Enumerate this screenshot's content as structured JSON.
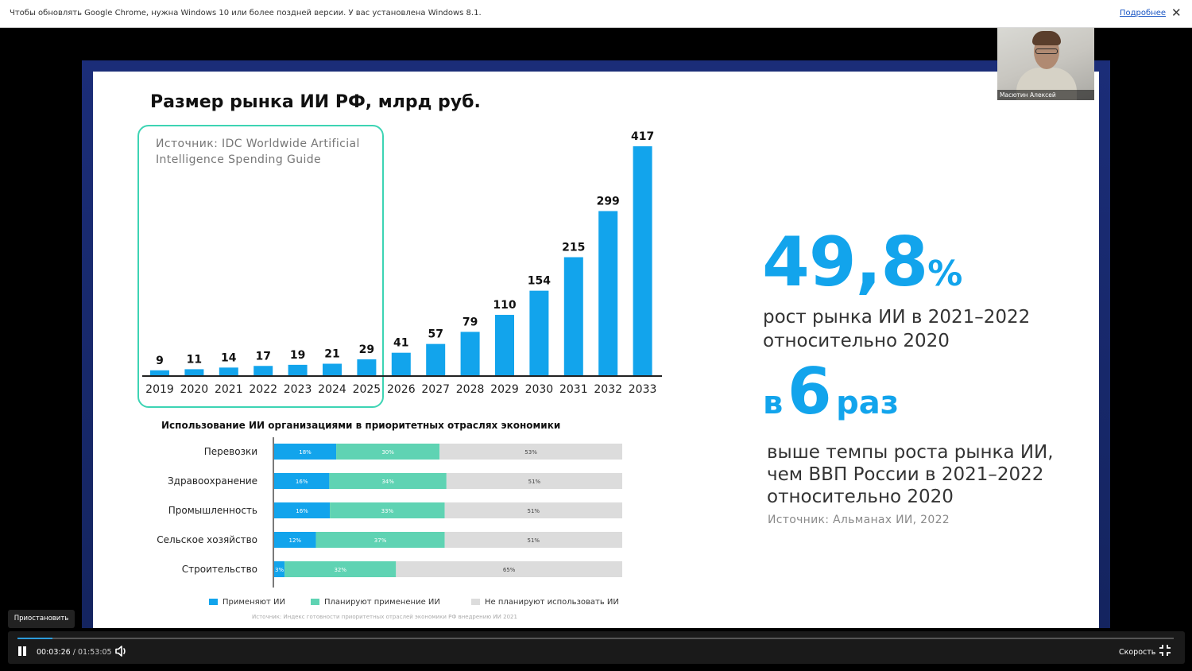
{
  "infobar": {
    "message": "Чтобы обновлять Google Chrome, нужна Windows 10 или более поздней версии. У вас установлена Windows 8.1.",
    "link": "Подробнее",
    "close_icon": "close-icon"
  },
  "slide": {
    "title": "Размер рынка ИИ РФ, млрд руб.",
    "source_box": "Источник: IDC Worldwide Artificial Intelligence Spending Guide",
    "stat1": {
      "value": "49,8",
      "suffix": "%",
      "description_line1": "рост рынка ИИ в 2021–2022",
      "description_line2": "относительно 2020"
    },
    "stat2": {
      "prefix": "в",
      "value": "6",
      "suffix": "раз",
      "description_line1": "выше темпы роста рынка ИИ,",
      "description_line2": "чем ВВП России в 2021–2022",
      "description_line3": "относительно 2020",
      "source": "Источник: Альманах ИИ, 2022"
    },
    "usage_title": "Использование ИИ организациями в приоритетных отраслях экономики",
    "usage_source": "Источник: Индекс готовности приоритетных отраслей экономики РФ внедрению ИИ 2021"
  },
  "chart_data": [
    {
      "type": "bar",
      "title": "Размер рынка ИИ РФ, млрд руб.",
      "categories": [
        "2019",
        "2020",
        "2021",
        "2022",
        "2023",
        "2024",
        "2025",
        "2026",
        "2027",
        "2028",
        "2029",
        "2030",
        "2031",
        "2032",
        "2033"
      ],
      "values": [
        9,
        11,
        14,
        17,
        19,
        21,
        29,
        41,
        57,
        79,
        110,
        154,
        215,
        299,
        417
      ],
      "xlabel": "",
      "ylabel": "",
      "ylim": [
        0,
        417
      ],
      "grid": false,
      "color": "#12a4ec"
    },
    {
      "type": "bar",
      "orientation": "horizontal",
      "stacked": true,
      "categories": [
        "Перевозки",
        "Здравоохранение",
        "Промышленность",
        "Сельское хозяйство",
        "Строительство"
      ],
      "series": [
        {
          "name": "Применяют ИИ",
          "values": [
            18,
            16,
            16,
            12,
            3
          ],
          "color": "#12a4ec"
        },
        {
          "name": "Планируют применение ИИ",
          "values": [
            30,
            34,
            33,
            37,
            32
          ],
          "color": "#5fd3b3"
        },
        {
          "name": "Не планируют использовать ИИ",
          "values": [
            53,
            51,
            51,
            51,
            65
          ],
          "color": "#dcdcdc"
        }
      ],
      "legend": "bottom",
      "grid": false
    }
  ],
  "webcam": {
    "name": "Масютин Алексей"
  },
  "player": {
    "tooltip": "Приостановить",
    "current_time": "00:03:26",
    "separator": "/",
    "total_time": "01:53:05",
    "speed_label": "Скорость",
    "progress_fraction": 0.0304,
    "icons": {
      "pause": "pause-icon",
      "volume": "volume-icon",
      "exit_fullscreen": "exit-fullscreen-icon"
    }
  }
}
